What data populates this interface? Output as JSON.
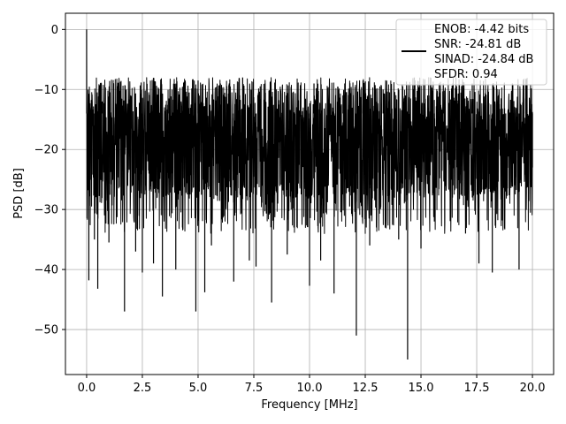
{
  "chart_data": {
    "type": "line",
    "xlabel": "Frequency [MHz]",
    "ylabel": "PSD [dB]",
    "xlim": [
      -0.95,
      20.95
    ],
    "ylim": [
      -57.5,
      2.7
    ],
    "xticks": [
      0.0,
      2.5,
      5.0,
      7.5,
      10.0,
      12.5,
      15.0,
      17.5,
      20.0
    ],
    "xtick_labels": [
      "0.0",
      "2.5",
      "5.0",
      "7.5",
      "10.0",
      "12.5",
      "15.0",
      "17.5",
      "20.0"
    ],
    "yticks": [
      0,
      -10,
      -20,
      -30,
      -40,
      -50
    ],
    "ytick_labels": [
      "0",
      "−10",
      "−20",
      "−30",
      "−40",
      "−50"
    ],
    "grid": true,
    "legend_placement": "upper-right",
    "legend": {
      "lines": [
        "ENOB: -4.42 bits",
        "SNR: -24.81 dB",
        "SINAD: -24.84 dB",
        "SFDR: 0.94"
      ]
    },
    "series": [
      {
        "color": "#000000",
        "x": [
          0.0,
          0.05,
          0.1,
          0.2,
          0.35,
          0.5,
          0.7,
          1.0,
          1.4,
          1.7,
          2.0,
          2.2,
          2.5,
          2.8,
          3.0,
          3.4,
          3.7,
          4.0,
          4.3,
          4.6,
          4.9,
          5.0,
          5.3,
          5.6,
          6.0,
          6.3,
          6.6,
          7.0,
          7.3,
          7.6,
          8.0,
          8.3,
          8.7,
          9.0,
          9.3,
          9.6,
          10.0,
          10.2,
          10.5,
          10.8,
          11.1,
          11.5,
          11.8,
          12.1,
          12.4,
          12.7,
          13.0,
          13.3,
          13.6,
          14.0,
          14.4,
          14.7,
          15.0,
          15.3,
          15.6,
          16.0,
          16.3,
          16.6,
          17.0,
          17.3,
          17.6,
          17.9,
          18.2,
          18.5,
          18.8,
          19.1,
          19.4,
          19.7,
          20.0
        ],
        "y": [
          0.0,
          -22.0,
          -41.8,
          -13.0,
          -35.0,
          -43.2,
          -12.0,
          -35.5,
          -15.0,
          -47.0,
          -12.5,
          -37.0,
          -40.5,
          -12.0,
          -39.0,
          -44.5,
          -11.5,
          -40.0,
          -33.0,
          -10.5,
          -47.0,
          -8.5,
          -43.8,
          -36.0,
          -9.0,
          -26.0,
          -42.0,
          -8.0,
          -38.5,
          -39.5,
          -9.0,
          -45.5,
          -10.0,
          -37.5,
          -33.0,
          -10.0,
          -42.7,
          -9.0,
          -38.5,
          -13.0,
          -44.0,
          -11.0,
          -29.5,
          -51.0,
          -8.5,
          -36.0,
          -33.0,
          -10.0,
          -26.5,
          -35.0,
          -55.0,
          -8.0,
          -36.5,
          -11.0,
          -32.0,
          -9.0,
          -27.0,
          -10.0,
          -34.0,
          -9.0,
          -39.0,
          -11.0,
          -40.5,
          -10.0,
          -27.0,
          -9.0,
          -40.0,
          -11.5,
          -23.0
        ]
      }
    ]
  }
}
